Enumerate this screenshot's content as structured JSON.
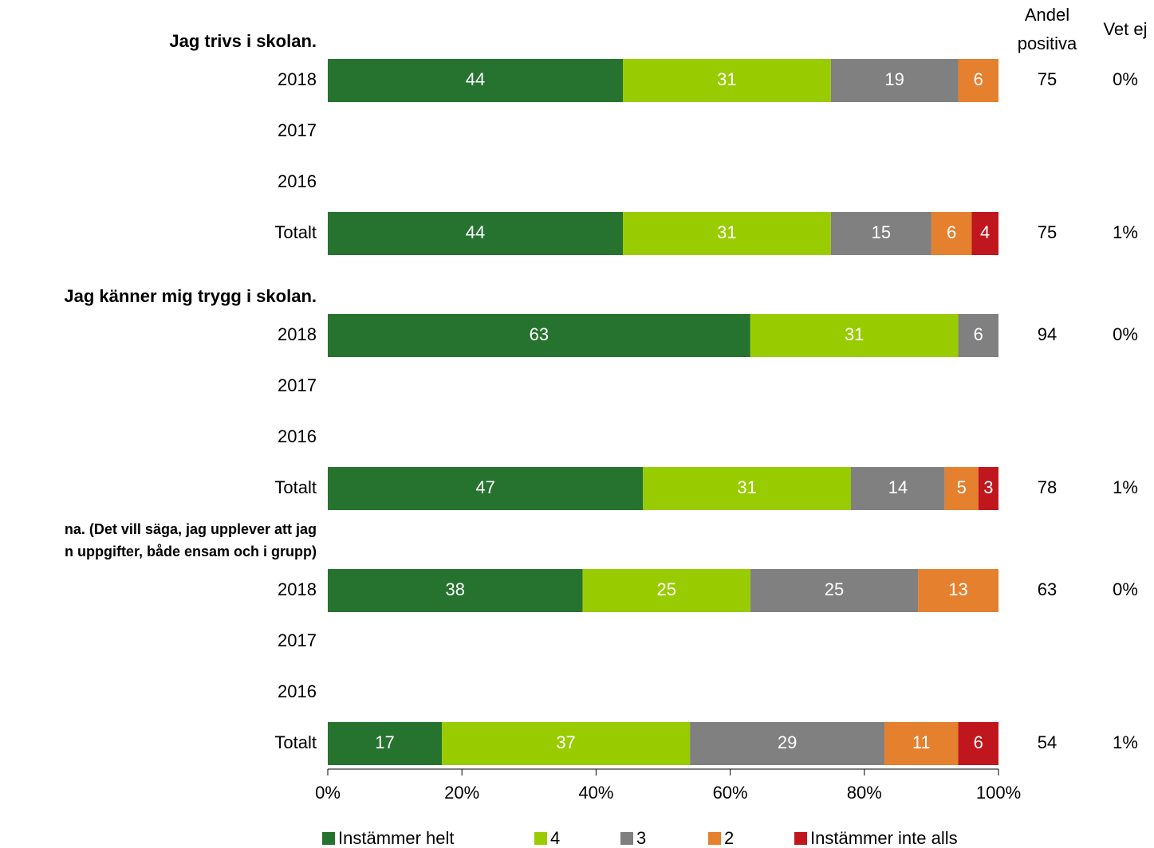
{
  "chart_data": {
    "type": "stacked_bar_horizontal",
    "group_titles": [
      [
        "Jag trivs i skolan."
      ],
      [
        "Jag känner mig trygg i skolan."
      ],
      [
        "na. (Det vill säga, jag upplever att jag",
        "n uppgifter, både ensam och i grupp)"
      ]
    ],
    "categories": [
      "2018",
      "2017",
      "2016",
      "Totalt",
      "2018",
      "2017",
      "2016",
      "Totalt",
      "2018",
      "2017",
      "2016",
      "Totalt"
    ],
    "series": [
      {
        "name": "Instämmer helt",
        "color": "#267330",
        "values": [
          44,
          null,
          null,
          44,
          63,
          null,
          null,
          47,
          38,
          null,
          null,
          17
        ]
      },
      {
        "name": "4",
        "color": "#99cc00",
        "values": [
          31,
          null,
          null,
          31,
          31,
          null,
          null,
          31,
          25,
          null,
          null,
          37
        ]
      },
      {
        "name": "3",
        "color": "#808080",
        "values": [
          19,
          null,
          null,
          15,
          6,
          null,
          null,
          14,
          25,
          null,
          null,
          29
        ]
      },
      {
        "name": "2",
        "color": "#e5802f",
        "values": [
          6,
          null,
          null,
          6,
          null,
          null,
          null,
          5,
          13,
          null,
          null,
          11
        ]
      },
      {
        "name": "Instämmer inte alls",
        "color": "#c0161d",
        "values": [
          null,
          null,
          null,
          4,
          null,
          null,
          null,
          3,
          null,
          null,
          null,
          6
        ]
      }
    ],
    "andel_positiva": {
      "name": [
        "Andel",
        "positiva"
      ],
      "values": [
        75,
        null,
        null,
        75,
        94,
        null,
        null,
        78,
        63,
        null,
        null,
        54
      ]
    },
    "vet_ej": {
      "name": "Vet ej",
      "values": [
        0,
        null,
        null,
        1,
        0,
        null,
        null,
        1,
        0,
        null,
        null,
        1
      ],
      "value_labels": [
        "0%",
        null,
        null,
        "1%",
        "0%",
        null,
        null,
        "1%",
        "0%",
        null,
        null,
        "1%"
      ]
    },
    "xlim": [
      0,
      100
    ],
    "xticks": [
      {
        "value": 0,
        "label": "0%"
      },
      {
        "value": 20,
        "label": "20%"
      },
      {
        "value": 40,
        "label": "40%"
      },
      {
        "value": 60,
        "label": "60%"
      },
      {
        "value": 80,
        "label": "80%"
      },
      {
        "value": 100,
        "label": "100%"
      }
    ],
    "legend": "bottom"
  }
}
